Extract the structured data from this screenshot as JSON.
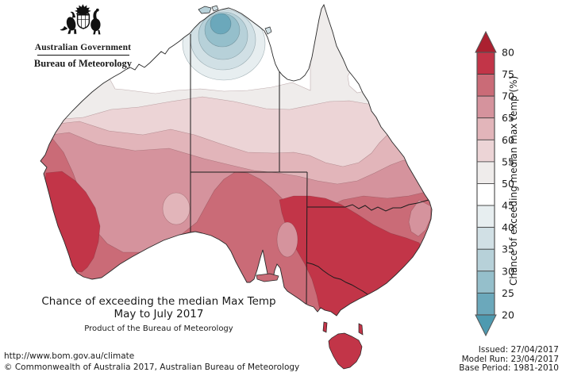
{
  "header": {
    "government": "Australian Government",
    "agency": "Bureau of Meteorology"
  },
  "title": {
    "line1": "Chance of exceeding the median Max Temp",
    "line2": "May to July 2017",
    "line3": "Product of the Bureau of Meteorology"
  },
  "footer": {
    "url": "http://www.bom.gov.au/climate",
    "copyright": "© Commonwealth of Australia 2017, Australian Bureau of Meteorology"
  },
  "issue_info": {
    "issued": "Issued: 27/04/2017",
    "model_run": "Model Run: 23/04/2017",
    "base_period": "Base Period: 1981-2010"
  },
  "chart_data": {
    "type": "heatmap",
    "subtype": "filled-contour-choropleth-map",
    "region": "Australia",
    "title": "Chance of exceeding the median Max Temp",
    "subtitle": "May to July 2017",
    "legend_label": "Chance of exceeding median max temp (%)",
    "legend_position": "right",
    "legend_ticks": [
      80,
      75,
      70,
      65,
      60,
      55,
      50,
      45,
      40,
      35,
      30,
      25,
      20
    ],
    "bands": [
      {
        "range": ">80",
        "color": "#ab2030"
      },
      {
        "range": "75-80",
        "color": "#c23548"
      },
      {
        "range": "70-75",
        "color": "#ca6b77"
      },
      {
        "range": "65-70",
        "color": "#d5939d"
      },
      {
        "range": "60-65",
        "color": "#e2b5ba"
      },
      {
        "range": "55-60",
        "color": "#ecd4d6"
      },
      {
        "range": "50-55",
        "color": "#efeceb"
      },
      {
        "range": "45-50",
        "color": "#ffffff"
      },
      {
        "range": "40-45",
        "color": "#e7eef0"
      },
      {
        "range": "35-40",
        "color": "#d1e0e5"
      },
      {
        "range": "30-35",
        "color": "#b7d1d9"
      },
      {
        "range": "25-30",
        "color": "#95bfcb"
      },
      {
        "range": "20-25",
        "color": "#6ba8bb"
      },
      {
        "range": "<20",
        "color": "#4e9ab0"
      }
    ],
    "map_readings": [
      {
        "area": "Top End around Darwin (NT)",
        "value_pct": "20-45"
      },
      {
        "area": "Kimberley, northern NT and Cape York",
        "value_pct": "45-55"
      },
      {
        "area": "Central-northern interior and central Queensland",
        "value_pct": "55-65"
      },
      {
        "area": "Southern interior, southern Queensland, west coast WA",
        "value_pct": "65-75"
      },
      {
        "area": "Southwest Western Australia",
        "value_pct": "75-80"
      },
      {
        "area": "Victoria and southern New South Wales",
        "value_pct": "75-80"
      },
      {
        "area": "Tasmania",
        "value_pct": "75-80"
      }
    ]
  }
}
